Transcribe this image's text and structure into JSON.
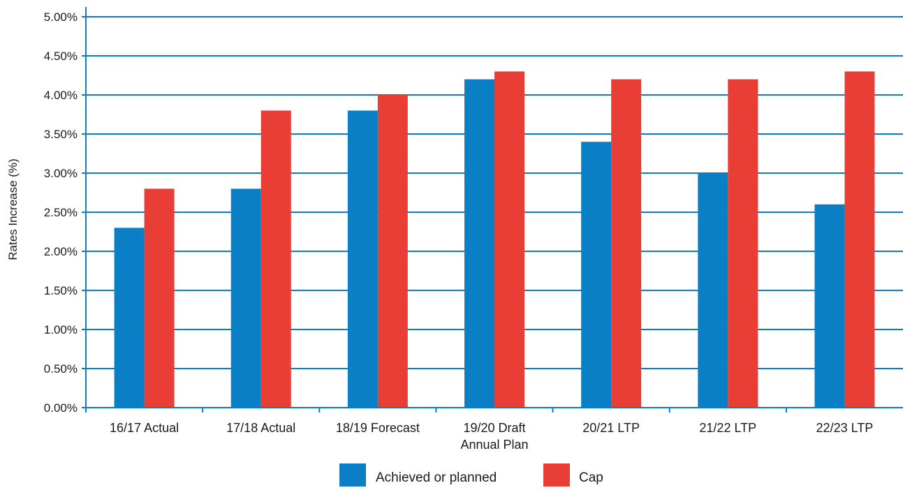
{
  "chart_data": {
    "type": "bar",
    "categories": [
      [
        "16/17 Actual"
      ],
      [
        "17/18 Actual"
      ],
      [
        "18/19 Forecast"
      ],
      [
        "19/20 Draft",
        "Annual Plan"
      ],
      [
        "20/21 LTP"
      ],
      [
        "21/22 LTP"
      ],
      [
        "22/23 LTP"
      ]
    ],
    "series": [
      {
        "name": "Achieved or planned",
        "color": "#0a7fc6",
        "values": [
          2.3,
          2.8,
          3.8,
          4.2,
          3.4,
          3.0,
          2.6
        ]
      },
      {
        "name": "Cap",
        "color": "#e83e36",
        "values": [
          2.8,
          3.8,
          4.0,
          4.3,
          4.2,
          4.2,
          4.3
        ]
      }
    ],
    "title": "",
    "xlabel": "",
    "ylabel": "Rates Increase (%)",
    "ylim": [
      0,
      5
    ],
    "yticks": [
      0,
      0.5,
      1,
      1.5,
      2,
      2.5,
      3,
      3.5,
      4,
      4.5,
      5
    ],
    "ytick_labels": [
      "0.00%",
      "0.50%",
      "1.00%",
      "1.50%",
      "2.00%",
      "2.50%",
      "3.00%",
      "3.50%",
      "4.00%",
      "4.50%",
      "5.00%"
    ],
    "grid": true,
    "grid_color": "#0a7fc6",
    "legend_position": "bottom"
  }
}
